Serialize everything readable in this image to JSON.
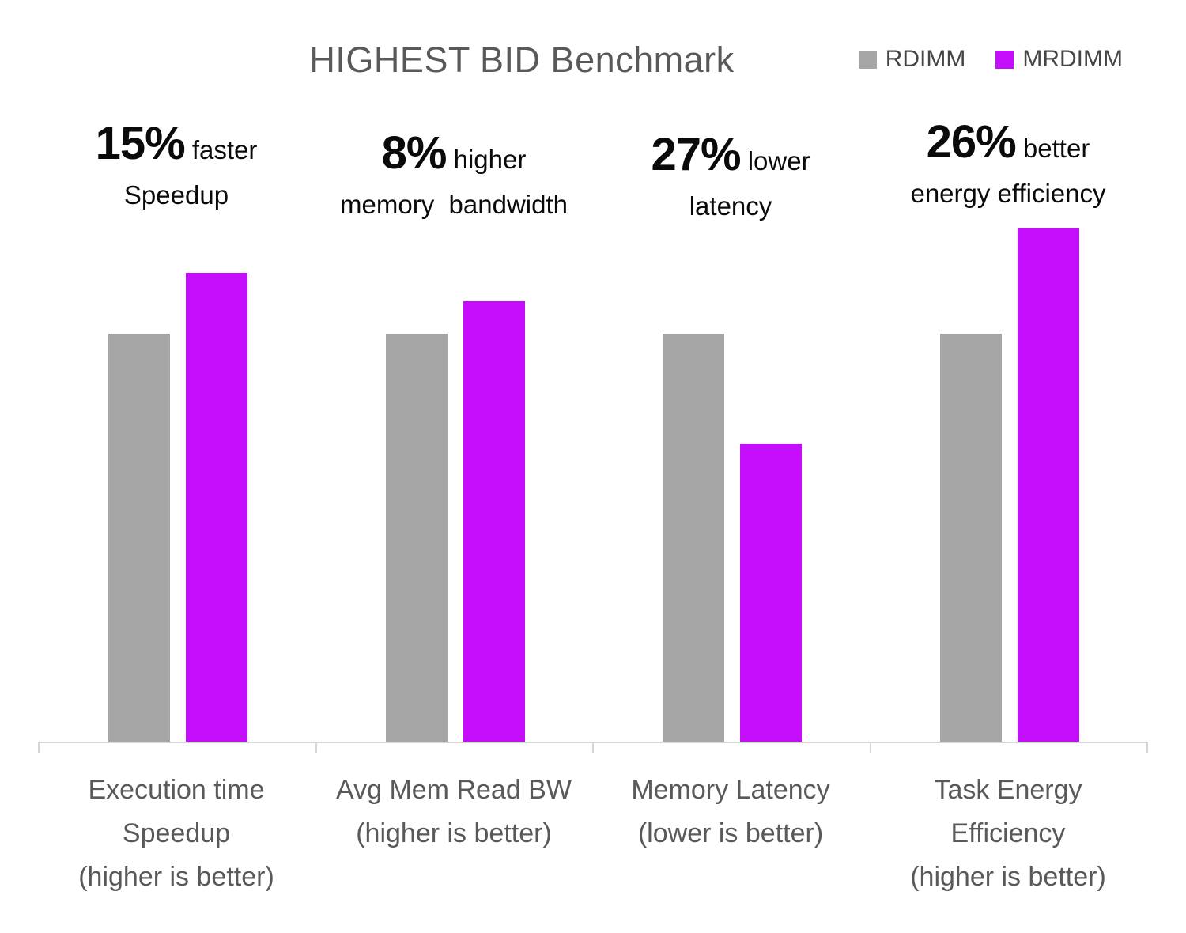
{
  "chart_data": {
    "type": "bar",
    "title": "HIGHEST BID Benchmark",
    "categories": [
      [
        "Execution time",
        "Speedup",
        "(higher is better)"
      ],
      [
        "Avg Mem Read BW",
        "(higher is better)"
      ],
      [
        "Memory Latency",
        "(lower is better)"
      ],
      [
        "Task Energy",
        "Efficiency",
        "(higher is better)"
      ]
    ],
    "series": [
      {
        "name": "RDIMM",
        "color": "#a6a6a6",
        "values": [
          1.0,
          1.0,
          1.0,
          1.0
        ]
      },
      {
        "name": "MRDIMM",
        "color": "#c40dfa",
        "values": [
          1.15,
          1.08,
          0.73,
          1.26
        ]
      }
    ],
    "annotations": [
      {
        "value": "15%",
        "suffix": "faster",
        "line2": "Speedup"
      },
      {
        "value": "8%",
        "suffix": "higher",
        "line2": "memory  bandwidth"
      },
      {
        "value": "27%",
        "suffix": "lower",
        "line2": "latency"
      },
      {
        "value": "26%",
        "suffix": "better",
        "line2": "energy efficiency"
      }
    ],
    "xlabel": "",
    "ylabel": "",
    "ylim": [
      0,
      1.4
    ],
    "grid": false,
    "y_axis_shown": false,
    "legend_position": "top-right",
    "note": "bar heights normalized to RDIMM = 1.0"
  },
  "colors": {
    "title_text": "#595959",
    "category_text": "#595959",
    "legend_text": "#454545",
    "annotation_text": "#0a0a0a",
    "axis_line": "#d6d6d6",
    "background": "#ffffff"
  }
}
